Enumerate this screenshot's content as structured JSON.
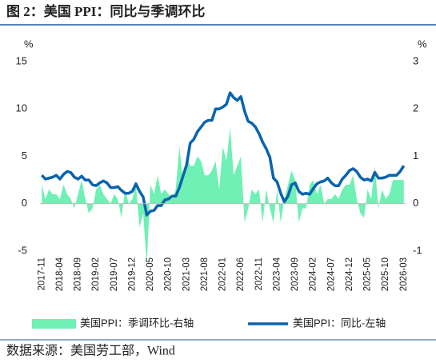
{
  "chart_data": {
    "type": "line",
    "title": "图 2：美国 PPI：同比与季调环比",
    "y_label": "%",
    "y2_label": "%",
    "source": "数据来源：美国劳工部，Wind",
    "categories": [
      "2017-11",
      null,
      null,
      null,
      null,
      "2018-04",
      null,
      null,
      null,
      null,
      "2018-09",
      null,
      null,
      null,
      null,
      "2019-02",
      null,
      null,
      null,
      null,
      "2019-07",
      null,
      null,
      null,
      null,
      "2019-12",
      null,
      null,
      null,
      null,
      "2020-05",
      null,
      null,
      null,
      null,
      "2020-10",
      null,
      null,
      null,
      null,
      "2021-03",
      null,
      null,
      null,
      null,
      "2021-08",
      null,
      null,
      null,
      null,
      "2022-01",
      null,
      null,
      null,
      null,
      "2022-06",
      null,
      null,
      null,
      null,
      "2022-11",
      null,
      null,
      null,
      null,
      "2023-04",
      null,
      null,
      null,
      null,
      "2023-09",
      null,
      null,
      null,
      null,
      "2024-02",
      null,
      null,
      null,
      null,
      "2024-07",
      null,
      null,
      null,
      null,
      "2024-12",
      null,
      null,
      null,
      null,
      "2025-05",
      null,
      null,
      null,
      null,
      "2025-10",
      null,
      null,
      null,
      null,
      "2026-03"
    ],
    "series": [
      {
        "name": "美国PPI：季调环比-右轴",
        "type": "area",
        "axis": "y2",
        "color": "#6ff0b4",
        "values": [
          0.4,
          0.1,
          0.3,
          0.2,
          0.2,
          0.1,
          0.4,
          0.2,
          0.1,
          -0.1,
          0.2,
          0.5,
          0.1,
          -0.2,
          -0.1,
          0.3,
          0.4,
          0.2,
          0.1,
          0.0,
          0.2,
          0.1,
          -0.3,
          0.3,
          0.0,
          0.1,
          0.4,
          -0.5,
          -0.2,
          -1.3,
          0.4,
          0.2,
          0.6,
          0.2,
          0.3,
          0.2,
          0.1,
          0.3,
          1.2,
          0.5,
          1.0,
          0.8,
          0.8,
          1.0,
          0.9,
          0.6,
          0.6,
          0.7,
          0.9,
          0.3,
          1.2,
          0.9,
          1.6,
          0.6,
          0.8,
          1.0,
          -0.4,
          -0.1,
          0.3,
          0.2,
          0.3,
          -0.4,
          0.3,
          -0.1,
          -0.4,
          0.3,
          -0.4,
          0.1,
          0.4,
          0.7,
          0.5,
          -0.4,
          -0.1,
          -0.1,
          0.4,
          0.5,
          0.2,
          0.4,
          0.0,
          0.1,
          0.1,
          0.2,
          0.1,
          0.3,
          0.4,
          0.4,
          0.6,
          0.1,
          -0.2,
          -0.3,
          0.3,
          0.1,
          0.8,
          -0.1,
          0.3,
          0.1,
          0.2,
          0.5,
          0.5,
          0.5,
          0.5
        ]
      },
      {
        "name": "美国PPI：同比-左轴",
        "type": "line",
        "axis": "y",
        "color": "#0a63ad",
        "values": [
          3.0,
          2.6,
          2.7,
          2.8,
          3.0,
          2.6,
          3.1,
          3.4,
          3.3,
          2.8,
          2.6,
          2.9,
          2.5,
          2.5,
          2.0,
          1.9,
          2.2,
          2.4,
          2.2,
          1.7,
          1.7,
          1.8,
          1.4,
          1.1,
          1.1,
          1.3,
          2.1,
          1.3,
          0.7,
          -1.2,
          -0.8,
          -0.7,
          -0.2,
          -0.2,
          0.4,
          0.5,
          0.8,
          0.8,
          1.7,
          2.9,
          4.1,
          6.4,
          6.8,
          7.6,
          8.1,
          8.6,
          8.8,
          8.8,
          10.0,
          10.0,
          10.2,
          10.5,
          11.7,
          11.2,
          10.9,
          11.3,
          9.8,
          8.7,
          8.5,
          8.1,
          7.4,
          6.5,
          5.8,
          4.9,
          2.7,
          2.3,
          1.1,
          0.2,
          0.8,
          2.0,
          2.2,
          1.3,
          1.0,
          1.1,
          1.0,
          1.6,
          2.1,
          2.3,
          2.4,
          2.7,
          2.2,
          1.9,
          1.9,
          2.6,
          3.0,
          3.5,
          3.7,
          3.4,
          2.8,
          2.5,
          2.6,
          2.4,
          3.3,
          2.7,
          2.7,
          2.8,
          3.0,
          3.0,
          3.0,
          3.4,
          4.0
        ]
      }
    ],
    "ylim": [
      -5,
      15
    ],
    "yticks": [
      -5,
      0,
      5,
      10,
      15
    ],
    "y2lim": [
      -1,
      3
    ],
    "y2ticks": [
      -1,
      0,
      1,
      2,
      3
    ]
  }
}
